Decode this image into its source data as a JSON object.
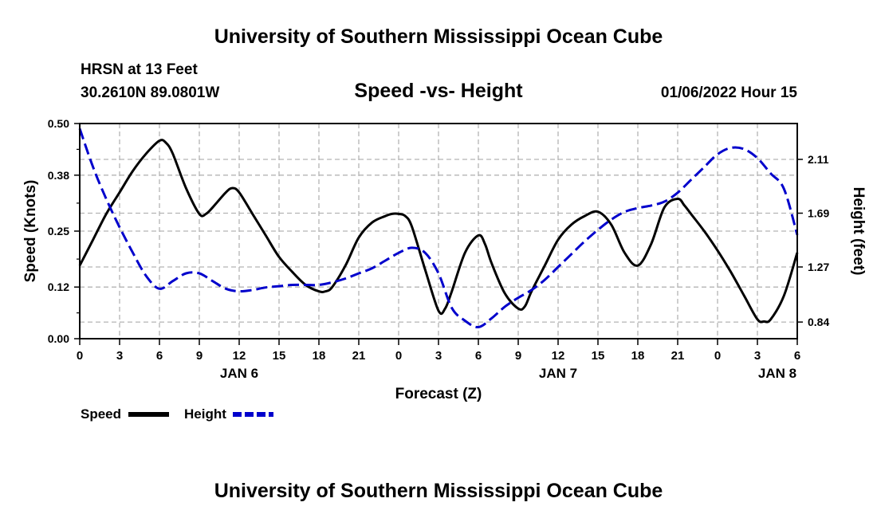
{
  "header": {
    "title": "University of Southern Mississippi Ocean Cube",
    "station": "HRSN at 13 Feet",
    "coords": "30.2610N  89.0801W",
    "datetime": "01/06/2022 Hour 15"
  },
  "footer": {
    "title": "University of Southern Mississippi Ocean Cube"
  },
  "colors": {
    "speed": "#000000",
    "height": "#0000cc",
    "grid": "#b4b4b4"
  },
  "chart_data": {
    "type": "line",
    "title": "Speed -vs- Height",
    "xlabel": "Forecast (Z)",
    "ylabel": "Speed (Knots)",
    "y2label": "Height (feet)",
    "x_unit": "hours since 2022-01-06 00Z",
    "xlim": [
      0,
      54
    ],
    "ylim": [
      0,
      0.5
    ],
    "y2lim": [
      0.71,
      2.39
    ],
    "x_ticks": [
      0,
      3,
      6,
      9,
      12,
      15,
      18,
      21,
      24,
      27,
      30,
      33,
      36,
      39,
      42,
      45,
      48,
      51,
      54
    ],
    "x_tick_labels": [
      "0",
      "3",
      "6",
      "9",
      "12",
      "15",
      "18",
      "21",
      "0",
      "3",
      "6",
      "9",
      "12",
      "15",
      "18",
      "21",
      "0",
      "3",
      "6"
    ],
    "day_labels": [
      {
        "x": 12,
        "label": "JAN 6"
      },
      {
        "x": 36,
        "label": "JAN 7"
      },
      {
        "x": 52.5,
        "label": "JAN 8"
      }
    ],
    "y_ticks": [
      0.0,
      0.12,
      0.25,
      0.38,
      0.5
    ],
    "y_tick_labels": [
      "0.00",
      "0.12",
      "0.25",
      "0.38",
      "0.50"
    ],
    "y2_ticks": [
      0.84,
      1.27,
      1.69,
      2.11
    ],
    "y2_tick_labels": [
      "0.84",
      "1.27",
      "1.69",
      "2.11"
    ],
    "legend": [
      {
        "name": "Speed",
        "style": "solid"
      },
      {
        "name": "Height",
        "style": "dashed"
      }
    ],
    "series": [
      {
        "name": "Speed",
        "axis": "left",
        "x": [
          0,
          1,
          2,
          3,
          4,
          5,
          6,
          6.5,
          7,
          8,
          9,
          9.5,
          10,
          11,
          11.5,
          12,
          13,
          14,
          15,
          16,
          17,
          18,
          18.5,
          19,
          20,
          21,
          22,
          23,
          23.5,
          24,
          24.5,
          25,
          26,
          27,
          27.5,
          28,
          29,
          30,
          30.5,
          31,
          32,
          33,
          33.5,
          34,
          35,
          36,
          37,
          38,
          39,
          40,
          41,
          42,
          43,
          44,
          45,
          45.5,
          46,
          47,
          48,
          49,
          50,
          51,
          51.5,
          52,
          53,
          54
        ],
        "values": [
          0.17,
          0.23,
          0.29,
          0.34,
          0.39,
          0.43,
          0.46,
          0.455,
          0.43,
          0.35,
          0.29,
          0.29,
          0.305,
          0.34,
          0.35,
          0.34,
          0.29,
          0.24,
          0.19,
          0.155,
          0.125,
          0.11,
          0.11,
          0.12,
          0.17,
          0.235,
          0.27,
          0.285,
          0.29,
          0.29,
          0.285,
          0.26,
          0.16,
          0.065,
          0.07,
          0.11,
          0.2,
          0.24,
          0.22,
          0.175,
          0.105,
          0.07,
          0.075,
          0.11,
          0.17,
          0.23,
          0.265,
          0.285,
          0.295,
          0.265,
          0.2,
          0.17,
          0.22,
          0.305,
          0.325,
          0.31,
          0.29,
          0.25,
          0.205,
          0.155,
          0.1,
          0.045,
          0.04,
          0.045,
          0.1,
          0.2
        ]
      },
      {
        "name": "Height",
        "axis": "right",
        "x": [
          0,
          1,
          2,
          3,
          4,
          5,
          6,
          7,
          8,
          9,
          10,
          11,
          12,
          13,
          14,
          15,
          16,
          17,
          18,
          19,
          20,
          21,
          22,
          23,
          24,
          25,
          26,
          27,
          28,
          29,
          30,
          31,
          32,
          33,
          34,
          35,
          36,
          37,
          38,
          39,
          40,
          41,
          42,
          43,
          44,
          45,
          46,
          47,
          48,
          49,
          50,
          51,
          52,
          53,
          54
        ],
        "values": [
          2.35,
          2.05,
          1.8,
          1.58,
          1.38,
          1.2,
          1.1,
          1.16,
          1.22,
          1.22,
          1.16,
          1.1,
          1.08,
          1.09,
          1.11,
          1.12,
          1.13,
          1.13,
          1.13,
          1.15,
          1.18,
          1.22,
          1.26,
          1.32,
          1.38,
          1.42,
          1.38,
          1.22,
          0.95,
          0.85,
          0.8,
          0.87,
          0.96,
          1.03,
          1.09,
          1.17,
          1.27,
          1.37,
          1.47,
          1.56,
          1.64,
          1.7,
          1.73,
          1.75,
          1.78,
          1.85,
          1.95,
          2.05,
          2.15,
          2.2,
          2.19,
          2.12,
          2.0,
          1.88,
          1.52
        ]
      }
    ]
  }
}
